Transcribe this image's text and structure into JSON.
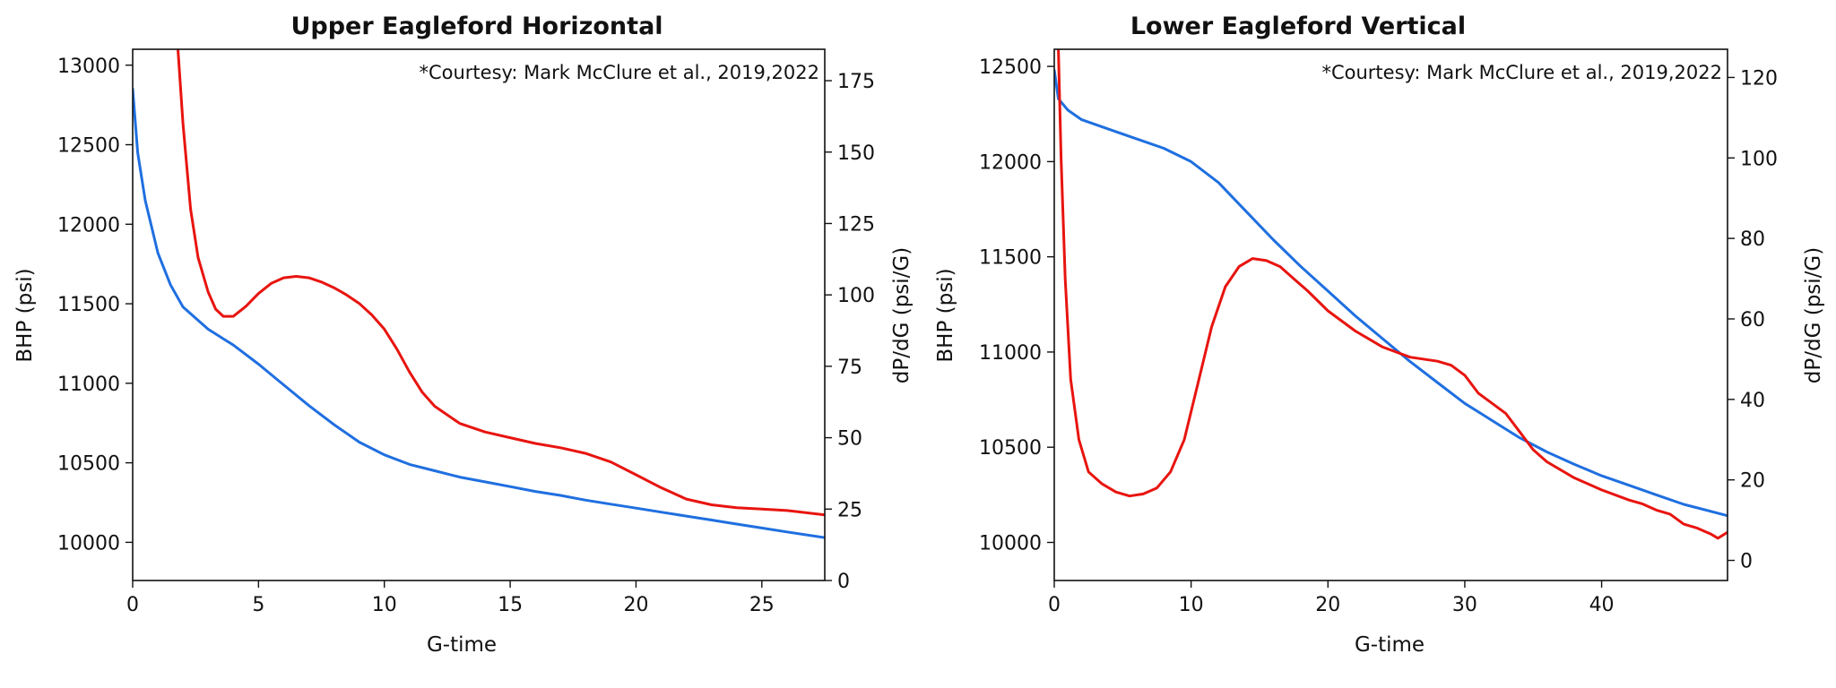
{
  "chart_data": [
    {
      "type": "line",
      "title": "Upper Eagleford Horizontal",
      "annotation": "*Courtesy: Mark McClure et al., 2019,2022",
      "xlabel": "G-time",
      "ylabel": "BHP (psi)",
      "y2label": "dP/dG (psi/G)",
      "xlim": [
        0,
        27.5
      ],
      "ylim": [
        9760,
        13100
      ],
      "y2lim": [
        0,
        186
      ],
      "xticks": [
        "0",
        "5",
        "10",
        "15",
        "20",
        "25"
      ],
      "yticks": [
        "10000",
        "10500",
        "11000",
        "11500",
        "12000",
        "12500",
        "13000"
      ],
      "y2ticks": [
        "0",
        "25",
        "50",
        "75",
        "100",
        "125",
        "150",
        "175"
      ],
      "colors": {
        "bhp": "#1f6fe0",
        "dpdg": "#e8140f"
      },
      "series": [
        {
          "axis": "left",
          "x": [
            0,
            0.2,
            0.5,
            1,
            1.5,
            2,
            3,
            4,
            5,
            6,
            7,
            8,
            9,
            10,
            11,
            12,
            13,
            14,
            15,
            16,
            17,
            18,
            19,
            20,
            21,
            22,
            23,
            24,
            25,
            26,
            27.5
          ],
          "y": [
            12850,
            12450,
            12150,
            11820,
            11620,
            11480,
            11340,
            11240,
            11120,
            10990,
            10860,
            10740,
            10630,
            10550,
            10490,
            10450,
            10410,
            10380,
            10350,
            10320,
            10295,
            10265,
            10240,
            10215,
            10190,
            10165,
            10140,
            10115,
            10090,
            10065,
            10030
          ]
        },
        {
          "axis": "right",
          "x": [
            1.8,
            2,
            2.3,
            2.6,
            3,
            3.3,
            3.6,
            4,
            4.5,
            5,
            5.5,
            6,
            6.5,
            7,
            7.5,
            8,
            8.5,
            9,
            9.5,
            10,
            10.5,
            11,
            11.5,
            12,
            13,
            14,
            15,
            16,
            17,
            18,
            19,
            20,
            21,
            22,
            23,
            24,
            25,
            26,
            27.5
          ],
          "y": [
            186,
            160,
            130,
            113,
            101,
            95,
            92.5,
            92.5,
            96,
            100.5,
            104,
            106,
            106.5,
            106,
            104.5,
            102.5,
            100,
            97,
            93,
            88,
            81,
            73,
            66,
            61,
            55,
            52,
            50,
            48,
            46.5,
            44.5,
            41.5,
            37,
            32.5,
            28.5,
            26.5,
            25.5,
            25,
            24.5,
            23
          ]
        }
      ]
    },
    {
      "type": "line",
      "title": "Lower Eagleford Vertical",
      "annotation": "*Courtesy: Mark McClure et al., 2019,2022",
      "xlabel": "G-time",
      "ylabel": "BHP (psi)",
      "y2label": "dP/dG (psi/G)",
      "xlim": [
        0,
        49.2
      ],
      "ylim": [
        9800,
        12590
      ],
      "y2lim": [
        -5,
        127
      ],
      "xticks": [
        "0",
        "10",
        "20",
        "30",
        "40"
      ],
      "yticks": [
        "10000",
        "10500",
        "11000",
        "11500",
        "12000",
        "12500"
      ],
      "y2ticks": [
        "0",
        "20",
        "40",
        "60",
        "80",
        "100",
        "120"
      ],
      "colors": {
        "bhp": "#1f6fe0",
        "dpdg": "#e8140f"
      },
      "series": [
        {
          "axis": "left",
          "x": [
            0,
            0.3,
            1,
            2,
            4,
            6,
            8,
            10,
            12,
            14,
            16,
            18,
            20,
            22,
            24,
            26,
            28,
            30,
            32,
            34,
            36,
            38,
            40,
            42,
            44,
            46,
            49.2
          ],
          "y": [
            12480,
            12330,
            12270,
            12220,
            12170,
            12120,
            12070,
            12000,
            11890,
            11740,
            11590,
            11450,
            11320,
            11190,
            11070,
            10950,
            10840,
            10730,
            10640,
            10550,
            10475,
            10410,
            10350,
            10300,
            10250,
            10200,
            10140
          ]
        },
        {
          "axis": "right",
          "x": [
            0.3,
            0.5,
            0.8,
            1.2,
            1.8,
            2.5,
            3.5,
            4.5,
            5.5,
            6.5,
            7.5,
            8.5,
            9.5,
            10.5,
            11.5,
            12.5,
            13.5,
            14.5,
            15.5,
            16.5,
            17.5,
            18.5,
            20,
            22,
            24,
            26,
            28,
            29,
            30,
            31,
            32,
            33,
            34,
            35,
            36,
            38,
            40,
            42,
            43,
            44,
            45,
            46,
            47,
            48,
            48.5,
            49.2
          ],
          "y": [
            127,
            100,
            70,
            45,
            30,
            22,
            19,
            17,
            16,
            16.5,
            18,
            22,
            30,
            44,
            58,
            68,
            73,
            75,
            74.5,
            73,
            70,
            67,
            62,
            57,
            53,
            50.5,
            49.5,
            48.5,
            46,
            41.5,
            39,
            36.5,
            32,
            27.5,
            24.5,
            20.5,
            17.5,
            15,
            14,
            12.5,
            11.5,
            9,
            8,
            6.5,
            5.5,
            7
          ]
        }
      ]
    }
  ]
}
